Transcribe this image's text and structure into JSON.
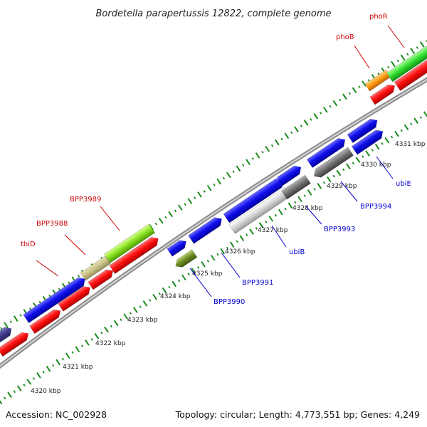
{
  "title": "Bordetella parapertussis 12822, complete genome",
  "footer": {
    "accession": "Accession: NC_002928",
    "summary": "Topology: circular; Length: 4,773,551 bp; Genes: 4,249"
  },
  "ticks": [
    "4320 kbp",
    "4321 kbp",
    "4322 kbp",
    "4323 kbp",
    "4324 kbp",
    "4325 kbp",
    "4326 kbp",
    "4327 kbp",
    "4328 kbp",
    "4329 kbp",
    "4330 kbp",
    "4331 kbp"
  ],
  "gene_labels_top": [
    "thiD",
    "BPP3988",
    "BPP3989",
    "phoB",
    "phoR"
  ],
  "gene_labels_bottom": [
    "BPP3990",
    "BPP3991",
    "ubiB",
    "BPP3993",
    "BPP3994",
    "ubiE"
  ],
  "colors": {
    "red_label": "#cc0000",
    "blue_label": "#0000cc",
    "tick": "#1a8a1a",
    "backbone": "#999999"
  }
}
